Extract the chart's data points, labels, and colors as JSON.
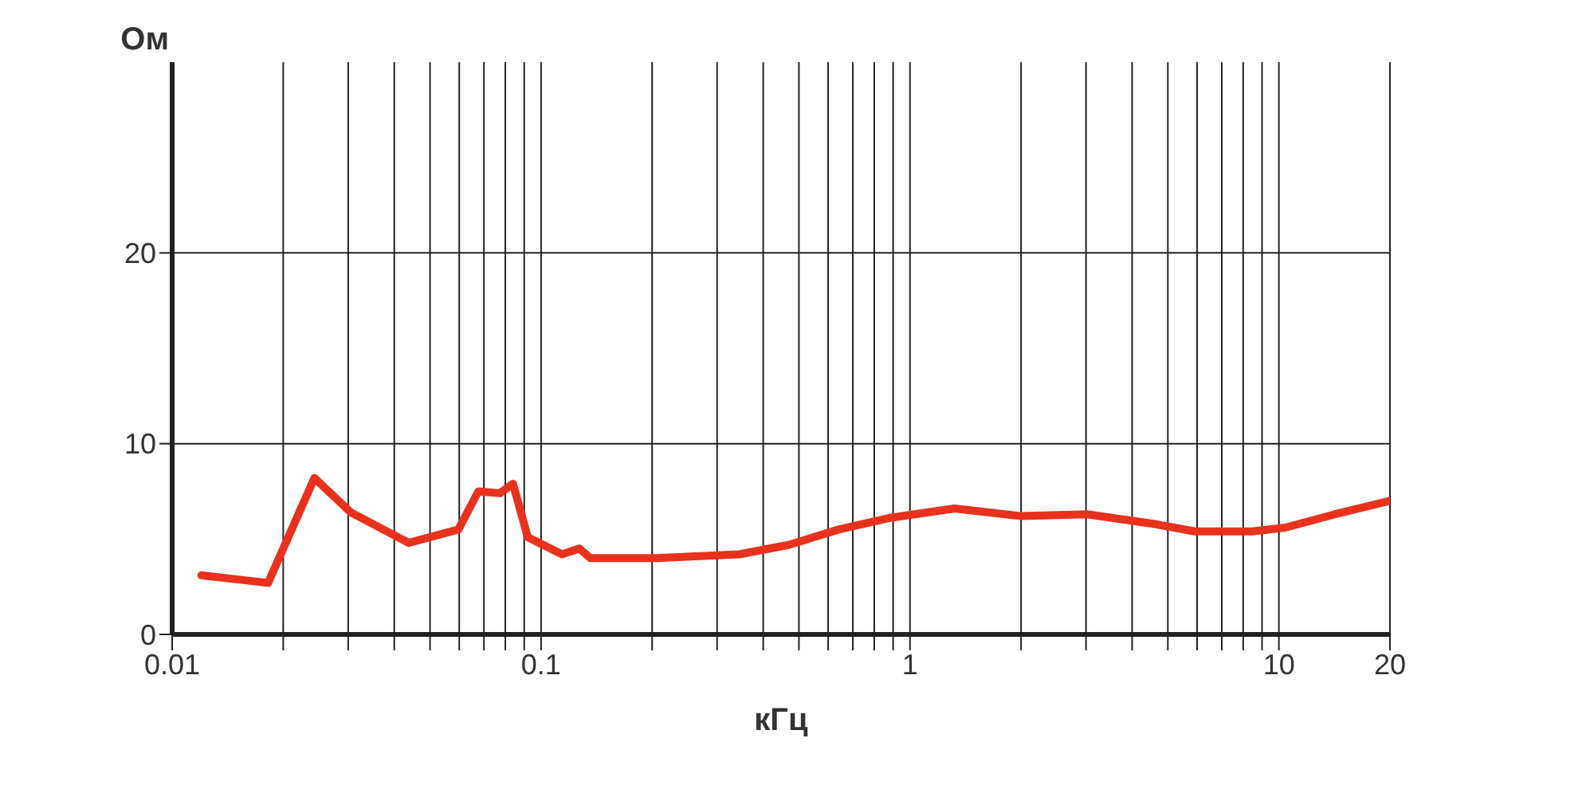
{
  "chart_data": {
    "type": "line",
    "xlabel": "кГц",
    "ylabel": "Ом",
    "log": "x",
    "grid": true,
    "marker": "none",
    "line_style": "solid",
    "legend": false,
    "xlim": [
      0.01,
      20
    ],
    "ylim": [
      0,
      30
    ],
    "xticks": [
      {
        "value": 0.01,
        "label": "0.01"
      },
      {
        "value": 0.02,
        "label": null
      },
      {
        "value": 0.03,
        "label": null
      },
      {
        "value": 0.04,
        "label": null
      },
      {
        "value": 0.05,
        "label": null
      },
      {
        "value": 0.06,
        "label": null
      },
      {
        "value": 0.07,
        "label": null
      },
      {
        "value": 0.08,
        "label": null
      },
      {
        "value": 0.09,
        "label": null
      },
      {
        "value": 0.1,
        "label": "0.1"
      },
      {
        "value": 0.2,
        "label": null
      },
      {
        "value": 0.3,
        "label": null
      },
      {
        "value": 0.4,
        "label": null
      },
      {
        "value": 0.5,
        "label": null
      },
      {
        "value": 0.6,
        "label": null
      },
      {
        "value": 0.7,
        "label": null
      },
      {
        "value": 0.8,
        "label": null
      },
      {
        "value": 0.9,
        "label": null
      },
      1,
      {
        "value": 2,
        "label": null
      },
      {
        "value": 3,
        "label": null
      },
      {
        "value": 4,
        "label": null
      },
      {
        "value": 5,
        "label": null
      },
      {
        "value": 6,
        "label": null
      },
      {
        "value": 7,
        "label": null
      },
      {
        "value": 8,
        "label": null
      },
      {
        "value": 9,
        "label": null
      },
      10,
      20
    ],
    "yticks": [
      0,
      10,
      20
    ],
    "series": [
      {
        "color": "#e8321e",
        "x": [
          0.012,
          0.0148,
          0.0182,
          0.0243,
          0.0305,
          0.0438,
          0.0597,
          0.0676,
          0.0773,
          0.0839,
          0.092,
          0.114,
          0.127,
          0.136,
          0.206,
          0.345,
          0.471,
          0.641,
          0.875,
          1.32,
          2.0,
          3.02,
          4.56,
          5.91,
          8.48,
          10.4,
          14.2,
          20
        ],
        "values": [
          3.1,
          2.9,
          2.7,
          8.2,
          6.4,
          4.8,
          5.5,
          7.5,
          7.4,
          7.9,
          5.1,
          4.2,
          4.5,
          4.0,
          4.0,
          4.2,
          4.7,
          5.5,
          6.1,
          6.6,
          6.2,
          6.3,
          5.8,
          5.4,
          5.4,
          5.6,
          6.3,
          7.0
        ]
      }
    ]
  }
}
